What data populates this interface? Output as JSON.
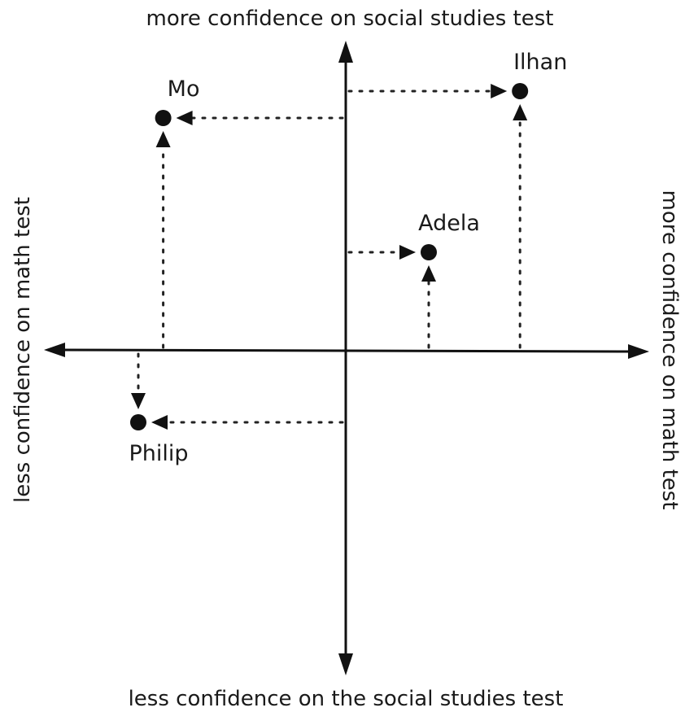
{
  "chart_data": {
    "type": "scatter",
    "x_axis": {
      "positive_label": "more confidence on math test",
      "negative_label": "less confidence on math test"
    },
    "y_axis": {
      "positive_label": "more confidence on social studies test",
      "negative_label": "less confidence on the social studies test"
    },
    "points": [
      {
        "label": "Mo",
        "x": -2.2,
        "y": 2.6
      },
      {
        "label": "Ilhan",
        "x": 2.1,
        "y": 2.9
      },
      {
        "label": "Adela",
        "x": 1.0,
        "y": 1.1
      },
      {
        "label": "Philip",
        "x": -2.5,
        "y": -0.8
      }
    ],
    "xlim": [
      -3.4,
      3.4
    ],
    "ylim": [
      -3.7,
      3.5
    ],
    "guides": "dotted arrows from both axes to each point",
    "colors": {
      "ink": "#111111",
      "background": "#ffffff"
    }
  }
}
